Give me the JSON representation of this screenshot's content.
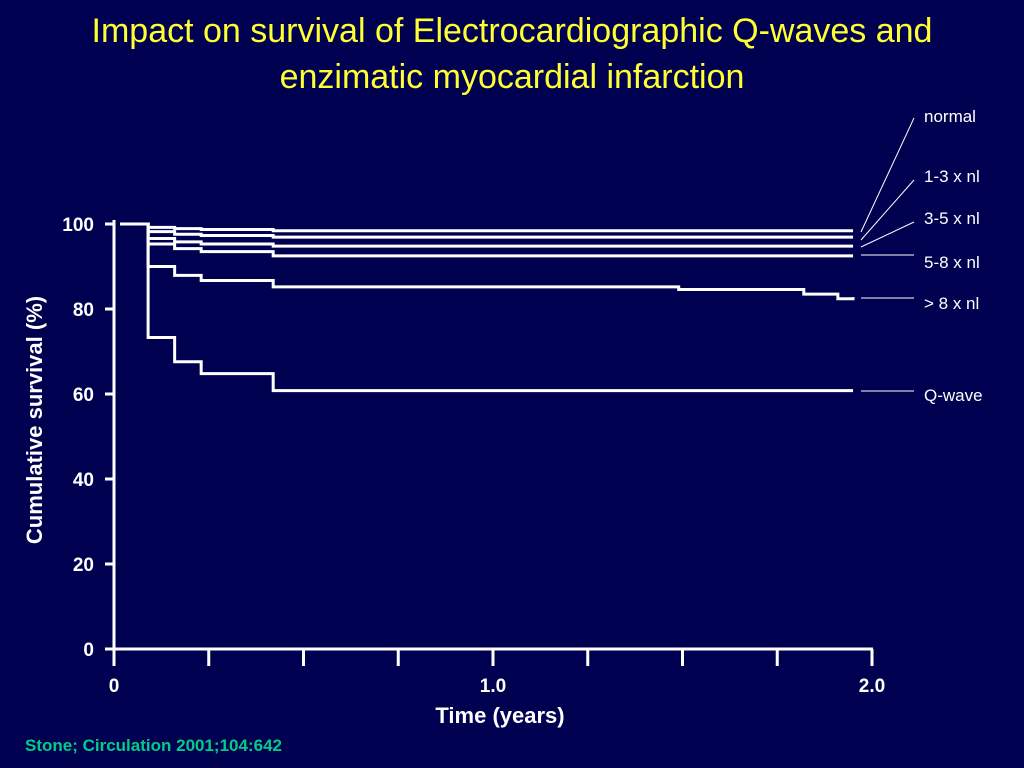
{
  "title": {
    "line1": "Impact on survival of Electrocardiographic Q-waves  and",
    "line2": "enzimatic myocardial infarction"
  },
  "colors": {
    "background": "#000050",
    "title": "#FFFF33",
    "axis": "#FFFFFF",
    "citation": "#00CC88"
  },
  "citation": "Stone; Circulation 2001;104:642",
  "chart_data": {
    "type": "line",
    "step": true,
    "title": "Impact on survival of Electrocardiographic Q-waves  and enzimatic myocardial infarction",
    "xlabel": "Time (years)",
    "ylabel": "Cumulative survival (%)",
    "xlim": [
      0,
      2.0
    ],
    "ylim": [
      0,
      100
    ],
    "x_ticks": [
      0,
      0.25,
      0.5,
      0.75,
      1.0,
      1.25,
      1.5,
      1.75,
      2.0
    ],
    "x_tick_labels": [
      {
        "value": 0,
        "label": "0"
      },
      {
        "value": 1.0,
        "label": "1.0"
      },
      {
        "value": 2.0,
        "label": "2.0"
      }
    ],
    "y_ticks": [
      0,
      20,
      40,
      60,
      80,
      100
    ],
    "y_tick_labels": [
      "0",
      "20",
      "40",
      "60",
      "80",
      "100"
    ],
    "grid": false,
    "series": [
      {
        "name": "normal",
        "x": [
          0,
          0.09,
          0.16,
          0.23,
          0.42,
          1.95
        ],
        "y": [
          100,
          99.2,
          98.9,
          98.7,
          98.4,
          98.4
        ]
      },
      {
        "name": "1-3 x nl",
        "x": [
          0,
          0.09,
          0.16,
          0.23,
          0.42,
          1.95
        ],
        "y": [
          100,
          98.2,
          97.6,
          97.3,
          96.9,
          96.9
        ]
      },
      {
        "name": "3-5 x nl",
        "x": [
          0,
          0.09,
          0.16,
          0.23,
          0.42,
          1.95
        ],
        "y": [
          100,
          96.6,
          95.8,
          95.3,
          94.8,
          94.8
        ]
      },
      {
        "name": "5-8 x nl",
        "x": [
          0,
          0.09,
          0.16,
          0.23,
          0.42,
          1.95
        ],
        "y": [
          100,
          95.3,
          94.2,
          93.5,
          92.5,
          92.5
        ]
      },
      {
        "name": "> 8 x nl",
        "x": [
          0,
          0.09,
          0.16,
          0.23,
          0.42,
          1.49,
          1.82,
          1.91,
          1.95
        ],
        "y": [
          100,
          90,
          87.9,
          86.7,
          85.2,
          84.6,
          83.5,
          82.4,
          82.8
        ]
      },
      {
        "name": "Q-wave",
        "x": [
          0,
          0.09,
          0.16,
          0.23,
          0.42,
          1.95
        ],
        "y": [
          100,
          73.3,
          67.6,
          64.8,
          60.8,
          60.8
        ]
      }
    ],
    "legend": [
      "normal",
      "1-3 x nl",
      "3-5 x nl",
      "5-8 x nl",
      "  > 8 x nl",
      "Q-wave"
    ],
    "legend_placement": "right"
  }
}
